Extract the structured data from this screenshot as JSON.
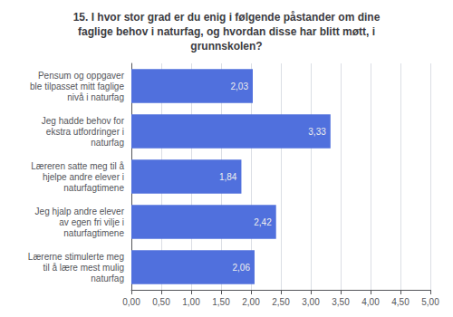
{
  "chart_data": {
    "type": "bar",
    "orientation": "horizontal",
    "title": "15. I hvor stor grad er du enig i følgende påstander om dine\nfaglige behov i naturfag, og hvordan disse har blitt møtt, i\ngrunnskolen?",
    "categories": [
      "Pensum og oppgaver\nble tilpasset mitt faglige\nnivå i naturfag",
      "Jeg hadde behov for\nekstra utfordringer i\nnaturfag",
      "Læreren satte meg til å\nhjelpe andre elever i\nnaturfagtimene",
      "Jeg hjalp andre elever\nav egen fri vilje i\nnaturfagtimene",
      "Lærerne stimulerte meg\ntil å lære mest mulig\nnaturfag"
    ],
    "values": [
      2.03,
      3.33,
      1.84,
      2.42,
      2.06
    ],
    "value_labels": [
      "2,03",
      "3,33",
      "1,84",
      "2,42",
      "2,06"
    ],
    "data_labels": true,
    "xlim": [
      0,
      5.0
    ],
    "xticks": [
      {
        "value": 0.0,
        "label": "0,00"
      },
      {
        "value": 0.5,
        "label": "0,50"
      },
      {
        "value": 1.0,
        "label": "1,00"
      },
      {
        "value": 1.5,
        "label": "1,50"
      },
      {
        "value": 2.0,
        "label": "2,00"
      },
      {
        "value": 2.5,
        "label": "2,50"
      },
      {
        "value": 3.0,
        "label": "3,00"
      },
      {
        "value": 3.5,
        "label": "3,50"
      },
      {
        "value": 4.0,
        "label": "4,00"
      },
      {
        "value": 4.5,
        "label": "4,50"
      },
      {
        "value": 5.0,
        "label": "5,00"
      }
    ],
    "grid": true
  }
}
